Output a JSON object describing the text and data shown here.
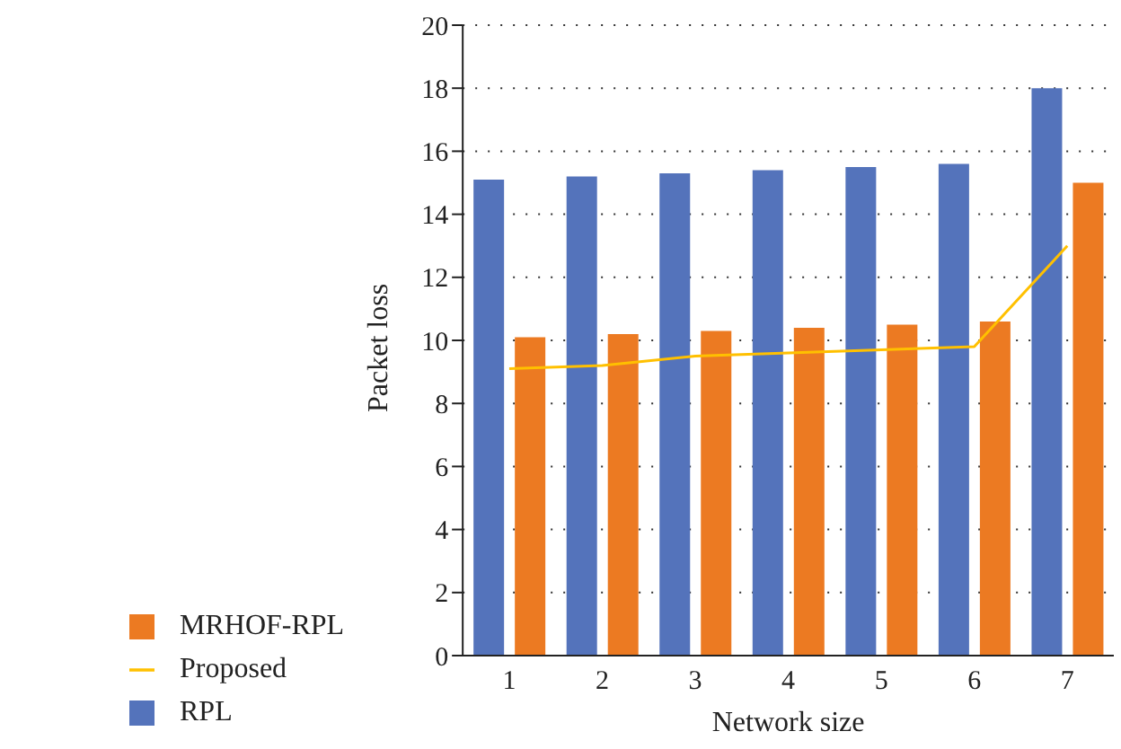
{
  "chart_data": {
    "type": "bar",
    "xlabel": "Network size",
    "ylabel": "Packet loss",
    "categories": [
      "1",
      "2",
      "3",
      "4",
      "5",
      "6",
      "7"
    ],
    "series": [
      {
        "name": "RPL",
        "color": "#5473bb",
        "values": [
          15.1,
          15.2,
          15.3,
          15.4,
          15.5,
          15.6,
          18
        ]
      },
      {
        "name": "MRHOF-RPL",
        "color": "#ec7a22",
        "values": [
          10.1,
          10.2,
          10.3,
          10.4,
          10.5,
          10.6,
          15
        ]
      },
      {
        "name": "Proposed",
        "type": "line",
        "color": "#ffc000",
        "values": [
          9.1,
          9.2,
          9.5,
          9.6,
          9.7,
          9.8,
          13
        ]
      }
    ],
    "ylim": [
      0,
      20
    ],
    "yticks": [
      0,
      2,
      4,
      6,
      8,
      10,
      12,
      14,
      16,
      18,
      20
    ],
    "grid": "y",
    "legend": "bottom left",
    "marker": "none"
  }
}
